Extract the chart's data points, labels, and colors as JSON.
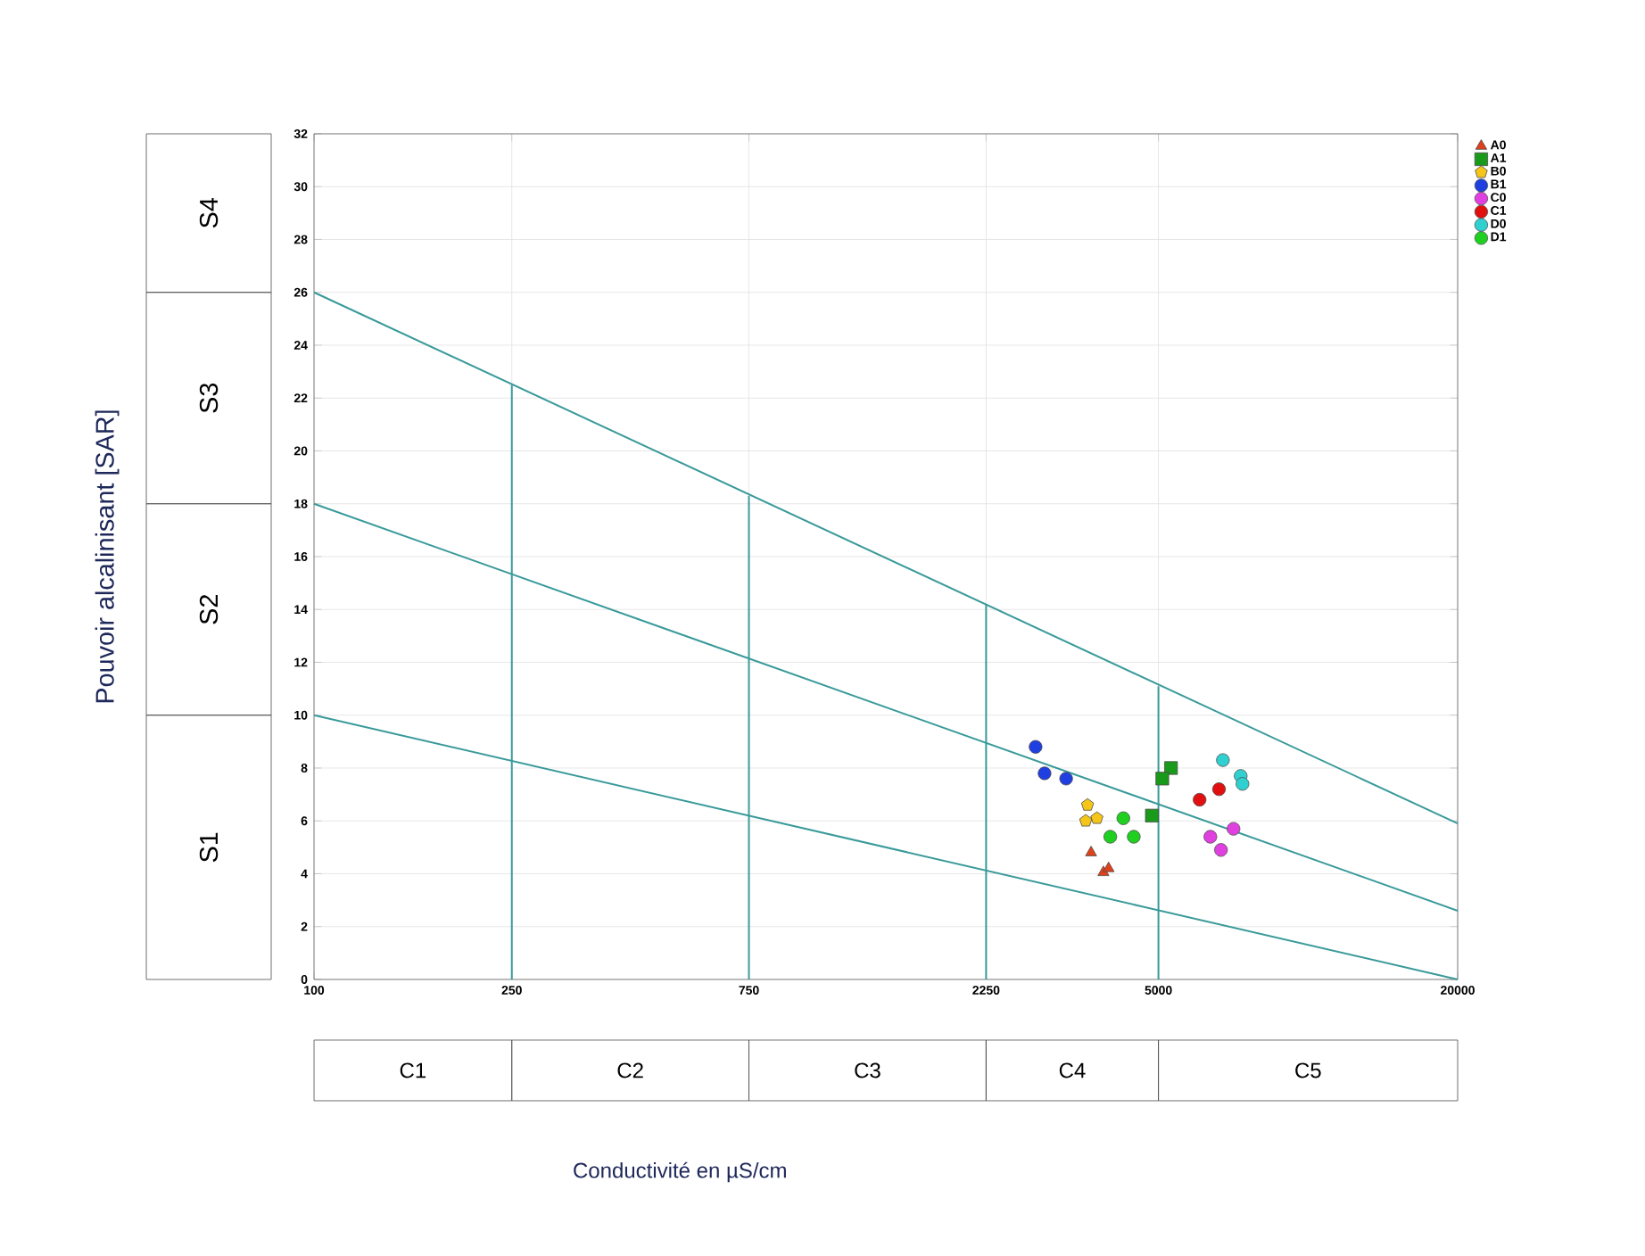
{
  "chart_data": {
    "type": "scatter",
    "annotations": [
      "Pouvoir alcalinisant [SAR]",
      "Conductivité en µS/cm",
      "S1",
      "S2",
      "S3",
      "S4",
      "C1",
      "C2",
      "C3",
      "C4",
      "C5"
    ],
    "log": "x",
    "grid": true,
    "legend": "top right",
    "xlim": [
      100,
      20000
    ],
    "ylim": [
      0,
      32
    ],
    "xticks": [
      100,
      250,
      750,
      2250,
      5000,
      20000
    ],
    "yticks": [
      0,
      2,
      4,
      6,
      8,
      10,
      12,
      14,
      16,
      18,
      20,
      22,
      24,
      26,
      28,
      30,
      32
    ],
    "series": [
      {
        "type": "line",
        "marker": "none",
        "color": "#3a9a9a",
        "x": [
          100,
          20000
        ],
        "values": [
          26,
          5.9
        ]
      },
      {
        "type": "line",
        "marker": "none",
        "color": "#3a9a9a",
        "x": [
          100,
          20000
        ],
        "values": [
          18,
          2.6
        ]
      },
      {
        "type": "line",
        "marker": "none",
        "color": "#3a9a9a",
        "x": [
          100,
          20000
        ],
        "values": [
          10,
          0
        ]
      },
      {
        "type": "line",
        "marker": "none",
        "color": "#3a9a9a",
        "x": [
          250,
          250
        ],
        "values": [
          0,
          22.5
        ]
      },
      {
        "type": "line",
        "marker": "none",
        "color": "#3a9a9a",
        "x": [
          750,
          750
        ],
        "values": [
          0,
          18.3
        ]
      },
      {
        "type": "line",
        "marker": "none",
        "color": "#3a9a9a",
        "x": [
          2250,
          2250
        ],
        "values": [
          0,
          14.2
        ]
      },
      {
        "type": "line",
        "marker": "none",
        "color": "#3a9a9a",
        "x": [
          5000,
          5000
        ],
        "values": [
          0,
          11.1
        ]
      },
      {
        "name": "A0",
        "marker": "triangle",
        "color": "#e0401a",
        "x": [
          3660,
          3875,
          3970
        ],
        "values": [
          4.8,
          4.05,
          4.2
        ]
      },
      {
        "name": "A1",
        "marker": "square",
        "color": "#1a9a1a",
        "x": [
          5300,
          5090,
          4850
        ],
        "values": [
          8.0,
          7.6,
          6.2
        ]
      },
      {
        "name": "B0",
        "color": "#f5c518",
        "x": [
          3600,
          3570,
          3760
        ],
        "values": [
          6.6,
          6.0,
          6.1
        ]
      },
      {
        "name": "B1",
        "marker": "circle",
        "color": "#1f3fe0",
        "x": [
          2830,
          2950,
          3260
        ],
        "values": [
          8.8,
          7.8,
          7.6
        ]
      },
      {
        "name": "C0",
        "marker": "circle",
        "color": "#e040e0",
        "x": [
          7080,
          6360,
          6680
        ],
        "values": [
          5.7,
          5.4,
          4.9
        ]
      },
      {
        "name": "C1",
        "marker": "circle",
        "color": "#e01010",
        "x": [
          6050,
          6620
        ],
        "values": [
          6.8,
          7.2
        ]
      },
      {
        "name": "D0",
        "marker": "circle",
        "color": "#30d0d0",
        "x": [
          6740,
          7320,
          7380
        ],
        "values": [
          8.3,
          7.7,
          7.4
        ]
      },
      {
        "name": "D1",
        "marker": "circle",
        "color": "#20d020",
        "x": [
          4250,
          4000,
          4460
        ],
        "values": [
          6.1,
          5.4,
          5.4
        ]
      }
    ]
  }
}
